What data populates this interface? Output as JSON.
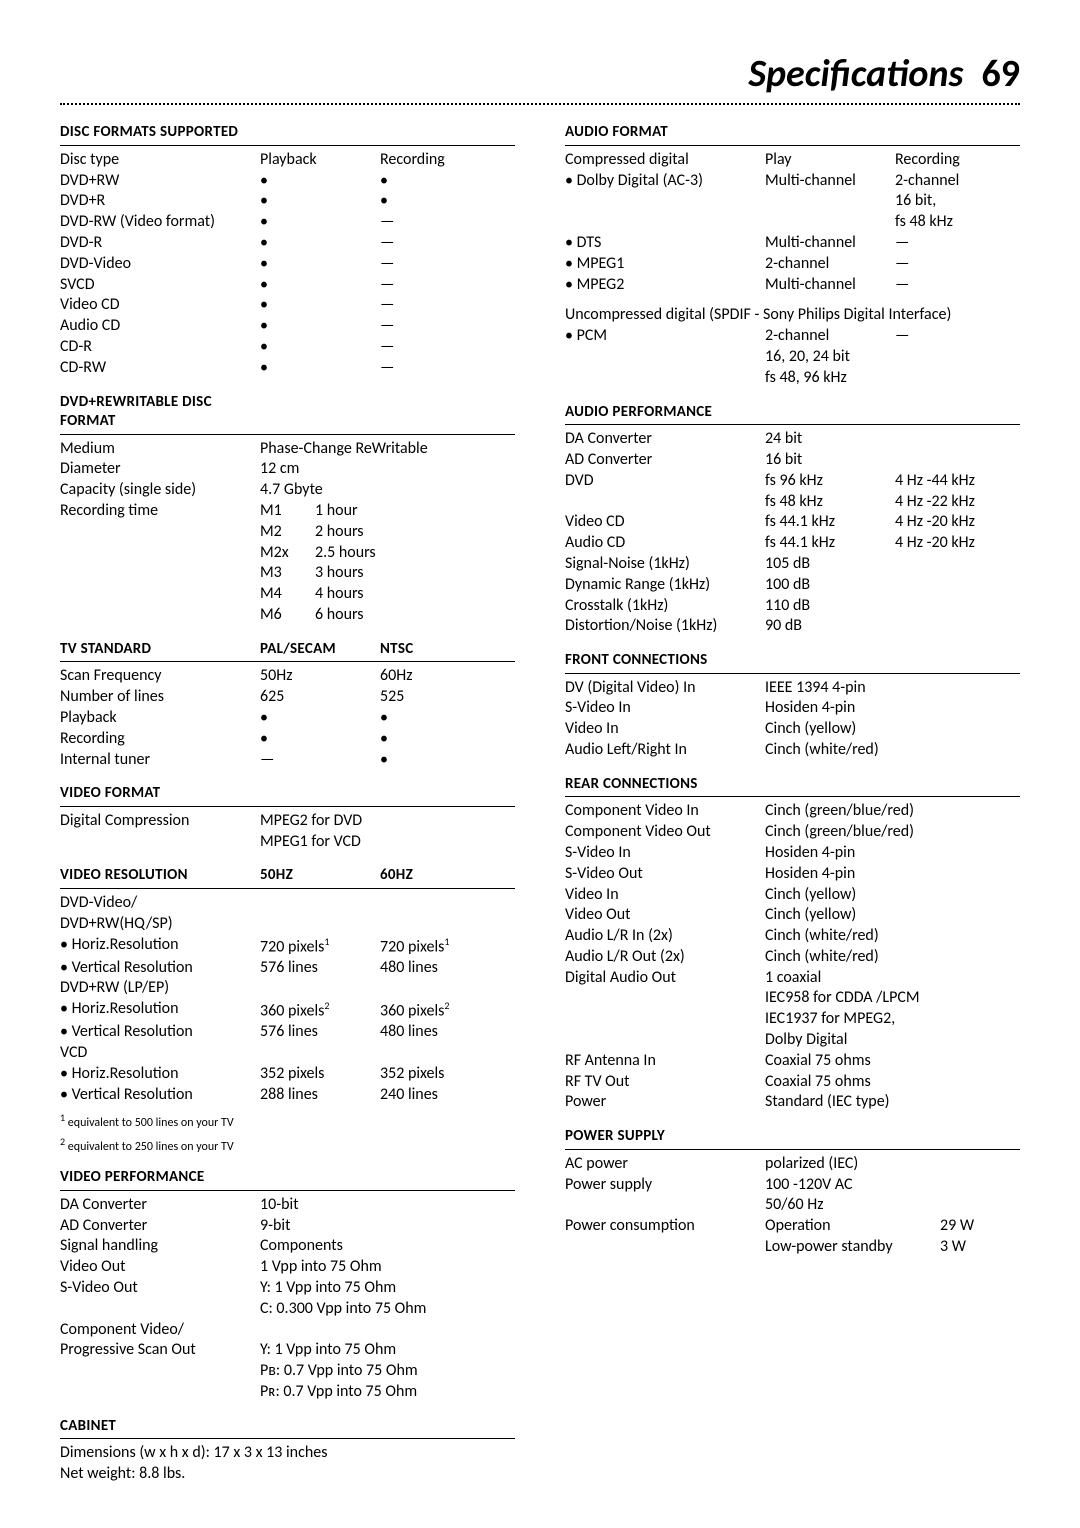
{
  "page": {
    "title": "Specifications",
    "number": "69"
  },
  "discFormats": {
    "heading": "DISC FORMATS SUPPORTED",
    "col_type": "Disc type",
    "col_play": "Playback",
    "col_rec": "Recording",
    "rows": [
      {
        "t": "DVD+RW",
        "p": "•",
        "r": "•"
      },
      {
        "t": "DVD+R",
        "p": "•",
        "r": "•"
      },
      {
        "t": "DVD-RW (Video format)",
        "p": "•",
        "r": "—"
      },
      {
        "t": "DVD-R",
        "p": "•",
        "r": "—"
      },
      {
        "t": "DVD-Video",
        "p": "•",
        "r": "—"
      },
      {
        "t": "SVCD",
        "p": "•",
        "r": "—"
      },
      {
        "t": "Video CD",
        "p": "•",
        "r": "—"
      },
      {
        "t": "Audio CD",
        "p": "•",
        "r": "—"
      },
      {
        "t": "CD-R",
        "p": "•",
        "r": "—"
      },
      {
        "t": "CD-RW",
        "p": "•",
        "r": "—"
      }
    ]
  },
  "dvdrw": {
    "heading": "DVD+REWRITABLE DISC FORMAT",
    "medium_l": "Medium",
    "medium_v": "Phase-Change ReWritable",
    "diam_l": "Diameter",
    "diam_v": "12 cm",
    "cap_l": "Capacity (single side)",
    "cap_v": "4.7 Gbyte",
    "rec_l": "Recording time",
    "modes": [
      {
        "m": "M1",
        "t": "1 hour"
      },
      {
        "m": "M2",
        "t": "2 hours"
      },
      {
        "m": "M2x",
        "t": "2.5 hours"
      },
      {
        "m": "M3",
        "t": "3 hours"
      },
      {
        "m": "M4",
        "t": "4 hours"
      },
      {
        "m": "M6",
        "t": "6 hours"
      }
    ]
  },
  "tvStd": {
    "heading": "TV STANDARD",
    "col_pal": "PAL/SECAM",
    "col_ntsc": "NTSC",
    "rows": [
      {
        "t": "Scan Frequency",
        "a": "50Hz",
        "b": "60Hz"
      },
      {
        "t": "Number of lines",
        "a": "625",
        "b": "525"
      },
      {
        "t": "Playback",
        "a": "•",
        "b": "•"
      },
      {
        "t": "Recording",
        "a": "•",
        "b": "•"
      },
      {
        "t": "Internal tuner",
        "a": "—",
        "b": "•"
      }
    ]
  },
  "videoFormat": {
    "heading": "VIDEO FORMAT",
    "dc_l": "Digital Compression",
    "dc_v1": "MPEG2 for DVD",
    "dc_v2": "MPEG1 for VCD"
  },
  "videoRes": {
    "heading": "VIDEO RESOLUTION",
    "col_a": "50Hz",
    "col_b": "60Hz",
    "g1_l": "DVD-Video/",
    "g1_l2": "DVD+RW(HQ/SP)",
    "g1_h_l": "• Horiz.Resolution",
    "g1_h_a": "720 pixels",
    "g1_h_sup": "1",
    "g1_h_b": "720 pixels",
    "g1_v_l": "• Vertical Resolution",
    "g1_v_a": "576 lines",
    "g1_v_b": "480 lines",
    "g2_l": "DVD+RW (LP/EP)",
    "g2_h_l": "• Horiz.Resolution",
    "g2_h_a": "360 pixels",
    "g2_h_sup": "2",
    "g2_h_b": "360 pixels",
    "g2_v_l": "• Vertical Resolution",
    "g2_v_a": "576 lines",
    "g2_v_b": "480 lines",
    "g3_l": "VCD",
    "g3_h_l": "• Horiz.Resolution",
    "g3_h_a": "352 pixels",
    "g3_h_b": "352 pixels",
    "g3_v_l": "• Vertical Resolution",
    "g3_v_a": "288 lines",
    "g3_v_b": "240 lines",
    "foot1": " equivalent to 500 lines on your TV",
    "foot2": " equivalent to 250 lines on your TV"
  },
  "videoPerf": {
    "heading": "VIDEO PERFORMANCE",
    "rows": [
      {
        "l": "DA Converter",
        "v": "10-bit"
      },
      {
        "l": "AD Converter",
        "v": "9-bit"
      },
      {
        "l": "Signal handling",
        "v": "Components"
      },
      {
        "l": "Video Out",
        "v": "1 Vpp into 75 Ohm"
      },
      {
        "l": "S-Video Out",
        "v": "Y: 1 Vpp into 75 Ohm"
      },
      {
        "l": "",
        "v": "C: 0.300 Vpp into 75 Ohm"
      },
      {
        "l": "Component Video/",
        "v": ""
      },
      {
        "l": "Progressive Scan Out",
        "v": "Y: 1 Vpp into 75 Ohm"
      },
      {
        "l": "",
        "v": "Pʙ: 0.7 Vpp into 75 Ohm"
      },
      {
        "l": "",
        "v": "Pʀ: 0.7 Vpp into 75 Ohm"
      }
    ]
  },
  "cabinet": {
    "heading": "CABINET",
    "dims": "Dimensions (w x h x d): 17 x 3 x 13 inches",
    "weight": "Net weight: 8.8 lbs."
  },
  "audioFormat": {
    "heading": "AUDIO FORMAT",
    "cd_l": "Compressed digital",
    "cd_a": "Play",
    "cd_b": "Recording",
    "rows": [
      {
        "t": "• Dolby Digital (AC-3)",
        "a": "Multi-channel",
        "b": "2-channel"
      },
      {
        "t": "",
        "a": "",
        "b": "16 bit,"
      },
      {
        "t": "",
        "a": "",
        "b": "fs 48 kHz"
      },
      {
        "t": "• DTS",
        "a": "Multi-channel",
        "b": "—"
      },
      {
        "t": "• MPEG1",
        "a": "2-channel",
        "b": "—"
      },
      {
        "t": "• MPEG2",
        "a": "Multi-channel",
        "b": "—"
      }
    ],
    "uncomp_l": "Uncompressed digital (SPDIF - Sony Philips Digital Interface)",
    "pcm_rows": [
      {
        "t": "• PCM",
        "a": "2-channel",
        "b": "—"
      },
      {
        "t": "",
        "a": "16, 20, 24 bit",
        "b": ""
      },
      {
        "t": "",
        "a": "fs 48, 96 kHz",
        "b": ""
      }
    ]
  },
  "audioPerf": {
    "heading": "AUDIO PERFORMANCE",
    "rows": [
      {
        "l": "DA Converter",
        "a": "24 bit",
        "b": ""
      },
      {
        "l": "AD Converter",
        "a": "16 bit",
        "b": ""
      },
      {
        "l": "DVD",
        "a": "fs 96 kHz",
        "b": "4 Hz -44 kHz"
      },
      {
        "l": "",
        "a": "fs 48 kHz",
        "b": "4 Hz -22 kHz"
      },
      {
        "l": "Video CD",
        "a": "fs 44.1 kHz",
        "b": "4 Hz -20 kHz"
      },
      {
        "l": "Audio CD",
        "a": "fs 44.1 kHz",
        "b": "4 Hz -20 kHz"
      },
      {
        "l": "Signal-Noise (1kHz)",
        "a": "105 dB",
        "b": ""
      },
      {
        "l": "Dynamic Range (1kHz)",
        "a": "100 dB",
        "b": ""
      },
      {
        "l": "Crosstalk (1kHz)",
        "a": "110 dB",
        "b": ""
      },
      {
        "l": "Distortion/Noise (1kHz)",
        "a": "90 dB",
        "b": ""
      }
    ]
  },
  "frontConn": {
    "heading": "FRONT CONNECTIONS",
    "rows": [
      {
        "l": "DV (Digital Video) In",
        "v": "IEEE 1394 4-pin"
      },
      {
        "l": "S-Video In",
        "v": "Hosiden 4-pin"
      },
      {
        "l": "Video In",
        "v": "Cinch (yellow)"
      },
      {
        "l": "Audio Left/Right In",
        "v": "Cinch (white/red)"
      }
    ]
  },
  "rearConn": {
    "heading": "REAR CONNECTIONS",
    "rows": [
      {
        "l": "Component Video In",
        "v": "Cinch (green/blue/red)"
      },
      {
        "l": "Component Video Out",
        "v": "Cinch (green/blue/red)"
      },
      {
        "l": "S-Video In",
        "v": "Hosiden 4-pin"
      },
      {
        "l": "S-Video Out",
        "v": "Hosiden 4-pin"
      },
      {
        "l": "Video In",
        "v": "Cinch (yellow)"
      },
      {
        "l": "Video Out",
        "v": "Cinch (yellow)"
      },
      {
        "l": "Audio L/R In (2x)",
        "v": "Cinch (white/red)"
      },
      {
        "l": "Audio L/R Out (2x)",
        "v": "Cinch (white/red)"
      },
      {
        "l": "Digital Audio Out",
        "v": "1 coaxial"
      },
      {
        "l": "",
        "v": "IEC958 for CDDA /LPCM"
      },
      {
        "l": "",
        "v": "IEC1937 for MPEG2,"
      },
      {
        "l": "",
        "v": "Dolby Digital"
      },
      {
        "l": "RF Antenna In",
        "v": "Coaxial 75 ohms"
      },
      {
        "l": "RF TV Out",
        "v": "Coaxial 75 ohms"
      },
      {
        "l": "Power",
        "v": "Standard (IEC type)"
      }
    ]
  },
  "power": {
    "heading": "POWER SUPPLY",
    "rows": [
      {
        "l": "AC power",
        "a": "polarized (IEC)",
        "b": ""
      },
      {
        "l": "Power supply",
        "a": "100 -120V AC",
        "b": ""
      },
      {
        "l": "",
        "a": "50/60 Hz",
        "b": ""
      },
      {
        "l": "Power consumption",
        "a": "Operation",
        "b": "29 W"
      },
      {
        "l": "",
        "a": "Low-power standby",
        "b": "3 W"
      }
    ]
  }
}
